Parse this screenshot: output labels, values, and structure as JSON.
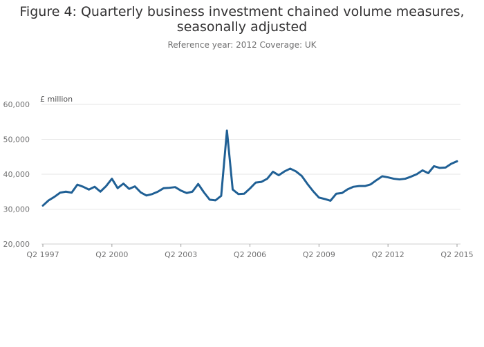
{
  "chart_data": {
    "type": "line",
    "title_line1": "Figure 4: Quarterly business investment chained volume measures,",
    "title_line2": "seasonally adjusted",
    "subtitle": "Reference year: 2012 Coverage: UK",
    "ylabel": "£ million",
    "xlabel": "",
    "ylim": [
      20000,
      60000
    ],
    "yticks": [
      20000,
      30000,
      40000,
      50000,
      60000
    ],
    "ytick_labels": [
      "20,000",
      "30,000",
      "40,000",
      "50,000",
      "60,000"
    ],
    "xtick_labels": [
      "Q2 1997",
      "Q2 2000",
      "Q2 2003",
      "Q2 2006",
      "Q2 2009",
      "Q2 2012",
      "Q2 2015"
    ],
    "xtick_indices": [
      0,
      12,
      24,
      36,
      48,
      60,
      72
    ],
    "grid": true,
    "line_color": "#206095",
    "series": [
      {
        "x": [
          "Q2 1997",
          "Q3 1997",
          "Q4 1997",
          "Q1 1998",
          "Q2 1998",
          "Q3 1998",
          "Q4 1998",
          "Q1 1999",
          "Q2 1999",
          "Q3 1999",
          "Q4 1999",
          "Q1 2000",
          "Q2 2000",
          "Q3 2000",
          "Q4 2000",
          "Q1 2001",
          "Q2 2001",
          "Q3 2001",
          "Q4 2001",
          "Q1 2002",
          "Q2 2002",
          "Q3 2002",
          "Q4 2002",
          "Q1 2003",
          "Q2 2003",
          "Q3 2003",
          "Q4 2003",
          "Q1 2004",
          "Q2 2004",
          "Q3 2004",
          "Q4 2004",
          "Q1 2005",
          "Q2 2005",
          "Q3 2005",
          "Q4 2005",
          "Q1 2006",
          "Q2 2006",
          "Q3 2006",
          "Q4 2006",
          "Q1 2007",
          "Q2 2007",
          "Q3 2007",
          "Q4 2007",
          "Q1 2008",
          "Q2 2008",
          "Q3 2008",
          "Q4 2008",
          "Q1 2009",
          "Q2 2009",
          "Q3 2009",
          "Q4 2009",
          "Q1 2010",
          "Q2 2010",
          "Q3 2010",
          "Q4 2010",
          "Q1 2011",
          "Q2 2011",
          "Q3 2011",
          "Q4 2011",
          "Q1 2012",
          "Q2 2012",
          "Q3 2012",
          "Q4 2012",
          "Q1 2013",
          "Q2 2013",
          "Q3 2013",
          "Q4 2013",
          "Q1 2014",
          "Q2 2014",
          "Q3 2014",
          "Q4 2014",
          "Q1 2015",
          "Q2 2015"
        ],
        "values": [
          31000,
          32500,
          33500,
          34700,
          35000,
          34700,
          37000,
          36400,
          35600,
          36400,
          35000,
          36600,
          38700,
          36000,
          37300,
          35800,
          36500,
          34800,
          33900,
          34300,
          35000,
          36000,
          36100,
          36300,
          35300,
          34600,
          35000,
          37200,
          34800,
          32700,
          32500,
          33800,
          52500,
          35600,
          34300,
          34400,
          35900,
          37600,
          37800,
          38700,
          40700,
          39700,
          40800,
          41600,
          40800,
          39500,
          37200,
          35100,
          33300,
          32900,
          32400,
          34400,
          34600,
          35700,
          36400,
          36600,
          36600,
          37100,
          38300,
          39400,
          39100,
          38700,
          38500,
          38700,
          39300,
          40000,
          41100,
          40300,
          42300,
          41800,
          41900,
          43000,
          43700
        ]
      }
    ]
  }
}
